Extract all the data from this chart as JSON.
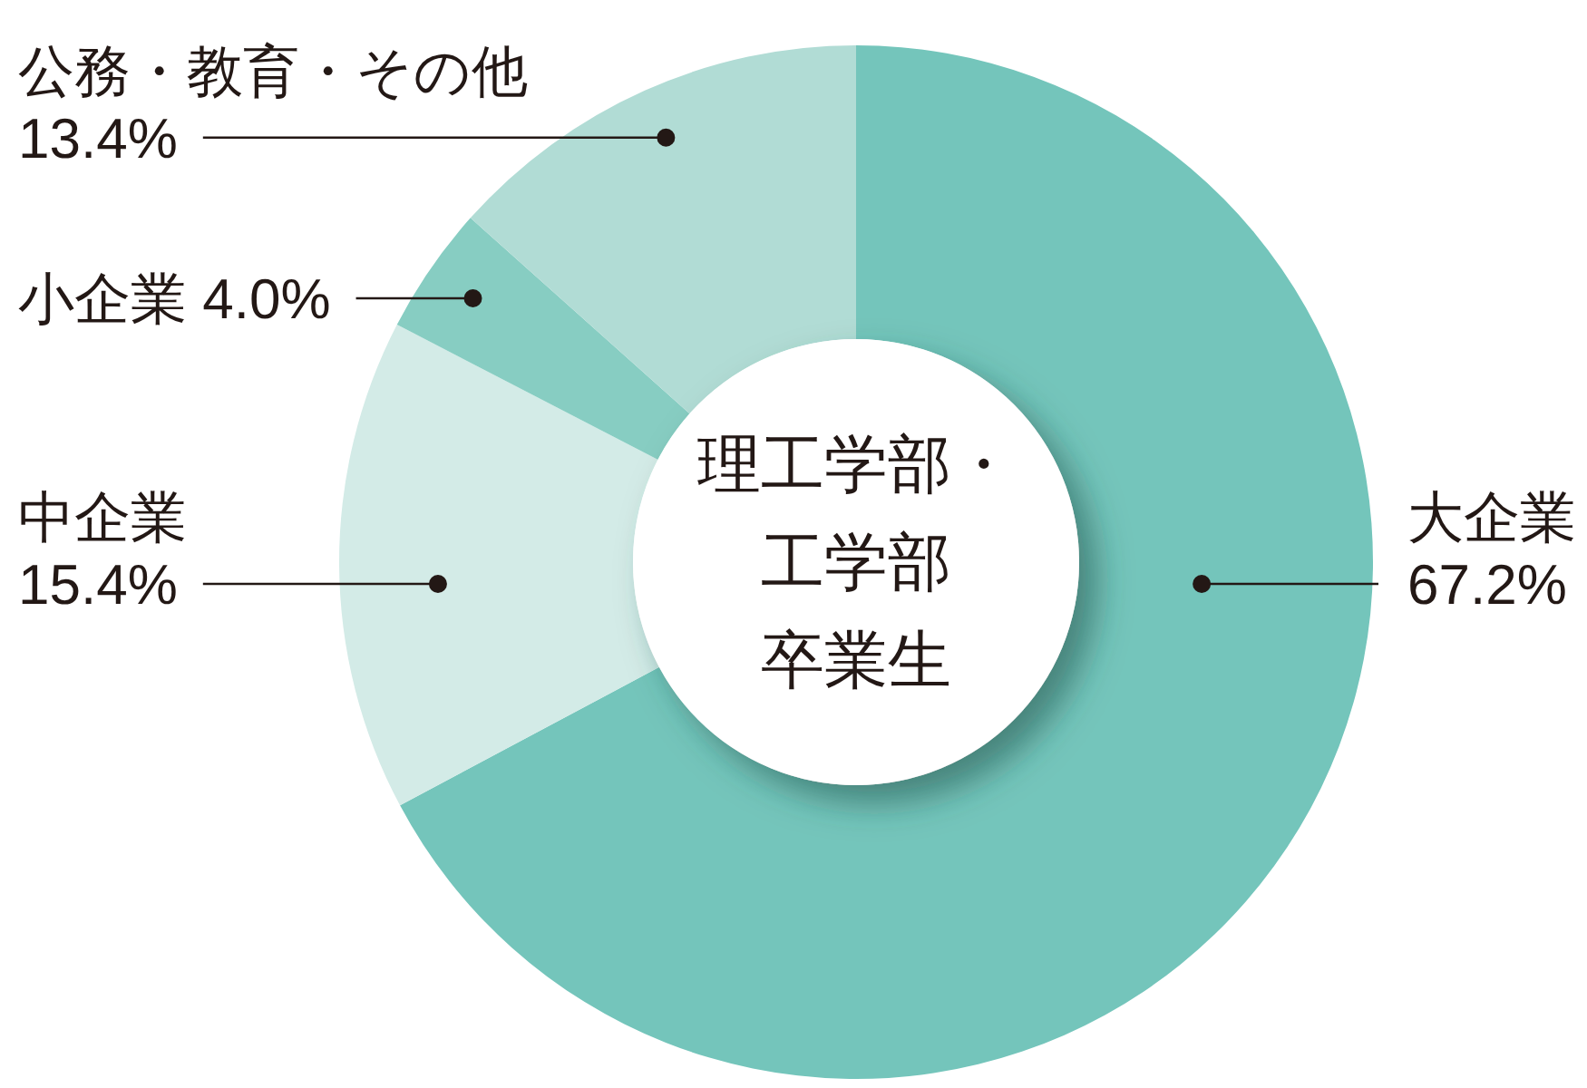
{
  "chart_data": {
    "type": "donut",
    "title": "理工学部・工学部卒業生",
    "categories": [
      "大企業",
      "中企業",
      "小企業",
      "公務・教育・その他"
    ],
    "values": [
      67.2,
      15.4,
      4.0,
      13.4
    ],
    "colors": [
      "#74c5bb",
      "#d3ebe7",
      "#87cdc2",
      "#b1dcd5"
    ],
    "value_labels": [
      "67.2%",
      "15.4%",
      "4.0%",
      "13.4%"
    ]
  }
}
